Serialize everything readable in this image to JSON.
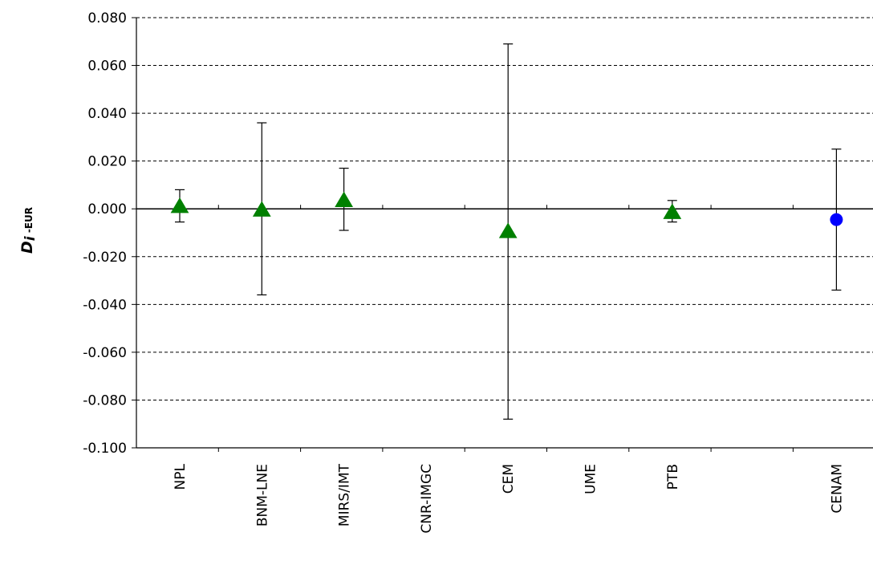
{
  "chart_data": {
    "type": "scatter",
    "ylabel_main": "D",
    "ylabel_sub": "i",
    "ylabel_suffix": " -EUR",
    "ylim": [
      -0.1,
      0.08
    ],
    "yticks": [
      "0.080",
      "0.060",
      "0.040",
      "0.020",
      "0.000",
      "-0.020",
      "-0.040",
      "-0.060",
      "-0.080",
      "-0.100"
    ],
    "ytick_values": [
      0.08,
      0.06,
      0.04,
      0.02,
      0.0,
      -0.02,
      -0.04,
      -0.06,
      -0.08,
      -0.1
    ],
    "grid": true,
    "categories": [
      "NPL",
      "BNM-LNE",
      "MIRS/IMT",
      "CNR-IMGC",
      "CEM",
      "UME",
      "PTB",
      "",
      "CENAM"
    ],
    "series": [
      {
        "marker": "triangle",
        "color": "#008000",
        "points": [
          {
            "category": "NPL",
            "y": 0.001,
            "err_low": -0.0055,
            "err_high": 0.008
          },
          {
            "category": "BNM-LNE",
            "y": -0.0005,
            "err_low": -0.036,
            "err_high": 0.036
          },
          {
            "category": "MIRS/IMT",
            "y": 0.0035,
            "err_low": -0.009,
            "err_high": 0.017
          },
          {
            "category": "CEM",
            "y": -0.0095,
            "err_low": -0.088,
            "err_high": 0.069
          },
          {
            "category": "PTB",
            "y": -0.0015,
            "err_low": -0.0055,
            "err_high": 0.0035
          }
        ]
      },
      {
        "marker": "circle",
        "color": "#0000ff",
        "points": [
          {
            "category": "CENAM",
            "y": -0.0045,
            "err_low": -0.034,
            "err_high": 0.025
          }
        ]
      }
    ]
  }
}
